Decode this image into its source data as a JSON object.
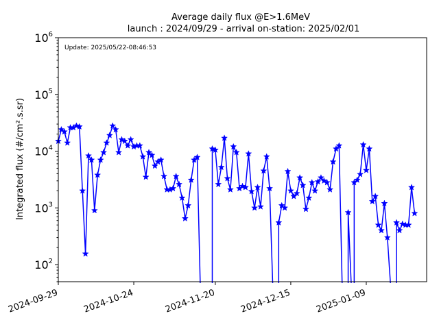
{
  "chart_data": {
    "type": "line",
    "title": "Average daily flux @E>1.6MeV",
    "subtitle": "launch : 2024/09/29 - arrival on-station: 2025/02/01",
    "annotation": "Update: 2025/05/22-08:46:53",
    "ylabel": "Integrated flux (#/cm².s.sr)",
    "xlabel": "",
    "y_scale": "log",
    "ylim": [
      50,
      1000000
    ],
    "xlim": [
      "2024-09-29",
      "2025-01-29"
    ],
    "y_ticks": [
      {
        "base": "10",
        "exp": "2",
        "value": 100
      },
      {
        "base": "10",
        "exp": "3",
        "value": 1000
      },
      {
        "base": "10",
        "exp": "4",
        "value": 10000
      },
      {
        "base": "10",
        "exp": "5",
        "value": 100000
      },
      {
        "base": "10",
        "exp": "6",
        "value": 1000000
      }
    ],
    "x_ticks": [
      "2024-09-29",
      "2024-10-24",
      "2024-11-20",
      "2024-12-15",
      "2025-01-09"
    ],
    "grid": false,
    "legend": "none",
    "color": "#0000ff",
    "series": [
      {
        "marker": "star",
        "x": [
          "2024-09-29",
          "2024-09-30",
          "2024-10-01",
          "2024-10-02",
          "2024-10-03",
          "2024-10-04",
          "2024-10-05",
          "2024-10-06",
          "2024-10-07",
          "2024-10-08",
          "2024-10-09",
          "2024-10-10",
          "2024-10-11",
          "2024-10-12",
          "2024-10-13",
          "2024-10-14",
          "2024-10-15",
          "2024-10-16",
          "2024-10-17",
          "2024-10-18",
          "2024-10-19",
          "2024-10-20",
          "2024-10-21",
          "2024-10-22",
          "2024-10-23",
          "2024-10-24",
          "2024-10-25",
          "2024-10-26",
          "2024-10-27",
          "2024-10-28",
          "2024-10-29",
          "2024-10-30",
          "2024-10-31",
          "2024-11-01",
          "2024-11-02",
          "2024-11-03",
          "2024-11-04",
          "2024-11-05",
          "2024-11-06",
          "2024-11-07",
          "2024-11-08",
          "2024-11-09",
          "2024-11-10",
          "2024-11-11",
          "2024-11-12",
          "2024-11-13",
          "2024-11-14",
          "2024-11-15",
          "2024-11-16",
          "2024-11-17",
          "2024-11-18",
          "2024-11-19",
          "2024-11-20",
          "2024-11-21",
          "2024-11-22",
          "2024-11-23",
          "2024-11-24",
          "2024-11-25",
          "2024-11-26",
          "2024-11-27",
          "2024-11-28",
          "2024-11-29",
          "2024-11-30",
          "2024-12-01",
          "2024-12-02",
          "2024-12-03",
          "2024-12-04",
          "2024-12-05",
          "2024-12-06",
          "2024-12-07",
          "2024-12-08",
          "2024-12-09",
          "2024-12-10",
          "2024-12-11",
          "2024-12-12",
          "2024-12-13",
          "2024-12-14",
          "2024-12-15",
          "2024-12-16",
          "2024-12-17",
          "2024-12-18",
          "2024-12-19",
          "2024-12-20",
          "2024-12-21",
          "2024-12-22",
          "2024-12-23",
          "2024-12-24",
          "2024-12-25",
          "2024-12-26",
          "2024-12-27",
          "2024-12-28",
          "2024-12-29",
          "2024-12-30",
          "2024-12-31",
          "2025-01-01",
          "2025-01-02",
          "2025-01-03",
          "2025-01-04",
          "2025-01-05",
          "2025-01-06",
          "2025-01-07",
          "2025-01-08",
          "2025-01-09",
          "2025-01-10",
          "2025-01-11",
          "2025-01-12",
          "2025-01-13",
          "2025-01-14",
          "2025-01-15",
          "2025-01-16",
          "2025-01-17",
          "2025-01-18",
          "2025-01-19",
          "2025-01-20",
          "2025-01-21",
          "2025-01-22",
          "2025-01-23",
          "2025-01-24",
          "2025-01-25"
        ],
        "y": [
          15000,
          24000,
          22000,
          14000,
          26000,
          26000,
          28000,
          27000,
          2000,
          155,
          8300,
          7000,
          900,
          3800,
          7000,
          9500,
          14000,
          19000,
          28000,
          24000,
          9500,
          16000,
          15000,
          12500,
          16000,
          12000,
          12500,
          12500,
          8000,
          3500,
          9500,
          8500,
          5500,
          6500,
          7000,
          3600,
          2100,
          2100,
          2200,
          3600,
          2600,
          1500,
          650,
          1100,
          3100,
          7000,
          7800,
          null,
          null,
          null,
          null,
          11000,
          10500,
          2600,
          5200,
          17000,
          3300,
          2100,
          12000,
          9500,
          2200,
          2400,
          2300,
          9000,
          1950,
          1000,
          2300,
          1050,
          4500,
          8000,
          2200,
          null,
          null,
          550,
          1100,
          1000,
          4400,
          2000,
          1600,
          1800,
          3400,
          2500,
          950,
          1500,
          2800,
          2000,
          2900,
          3400,
          3000,
          2800,
          2100,
          6500,
          11000,
          12500,
          null,
          null,
          830,
          null,
          2800,
          3100,
          3900,
          13000,
          4600,
          11000,
          1300,
          1600,
          500,
          400,
          1200,
          300,
          null,
          null,
          550,
          400,
          520,
          500,
          500,
          2300,
          800
        ]
      }
    ]
  }
}
